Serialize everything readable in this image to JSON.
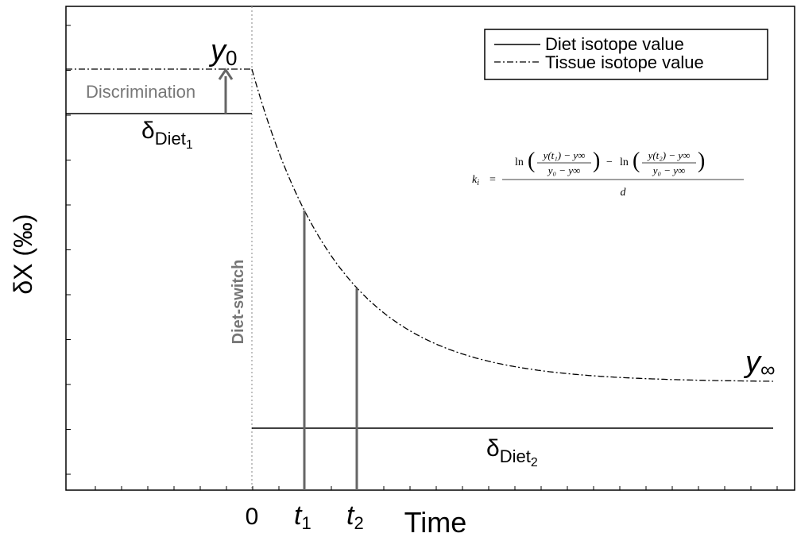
{
  "y_axis_label": "δX (‰)",
  "x_axis_label": "Time",
  "origin_label": "0",
  "t1": {
    "main": "t",
    "sub": "1"
  },
  "t2": {
    "main": "t",
    "sub": "2"
  },
  "y0": {
    "main": "y",
    "sub": "0"
  },
  "y_inf": {
    "main": "y",
    "sub": "∞"
  },
  "discrimination": "Discrimination",
  "diet_switch": "Diet-switch",
  "delta_diet_1": {
    "main": "δ",
    "sub": "Diet",
    "subsub": "1"
  },
  "delta_diet_2": {
    "main": "δ",
    "sub": "Diet",
    "subsub": "2"
  },
  "legend": [
    "Diet isotope value",
    "Tissue isotope value"
  ],
  "formula": {
    "k": "k",
    "i": "i",
    "eq": "=",
    "ln1": "ln",
    "num1": "y(t₁) − y∞",
    "den1": "y₀ − y∞",
    "minus": "−",
    "ln2": "ln",
    "num2": "y(t₂) − y∞",
    "den2": "y₀ − y∞",
    "denominator": "d"
  }
}
